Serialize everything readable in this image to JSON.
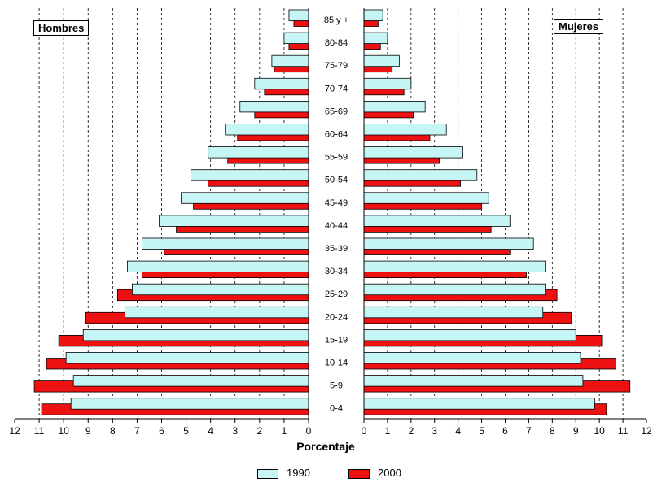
{
  "chart_data": {
    "type": "bar",
    "orientation": "population-pyramid",
    "left_panel_label": "Hombres",
    "right_panel_label": "Mujeres",
    "xlabel": "Porcentaje",
    "xlim": [
      0,
      12
    ],
    "x_ticks": [
      "0",
      "1",
      "2",
      "3",
      "4",
      "5",
      "6",
      "7",
      "8",
      "9",
      "10",
      "11",
      "12"
    ],
    "categories": [
      "85 y +",
      "80-84",
      "75-79",
      "70-74",
      "65-69",
      "60-64",
      "55-59",
      "50-54",
      "45-49",
      "40-44",
      "35-39",
      "30-34",
      "25-29",
      "20-24",
      "15-19",
      "10-14",
      "5-9",
      "0-4"
    ],
    "series": [
      {
        "name": "1990",
        "color": "#c6f5f5",
        "men": [
          0.8,
          1.0,
          1.5,
          2.2,
          2.8,
          3.4,
          4.1,
          4.8,
          5.2,
          6.1,
          6.8,
          7.4,
          7.2,
          7.5,
          9.2,
          9.9,
          9.6,
          9.7
        ],
        "women": [
          0.8,
          1.0,
          1.5,
          2.0,
          2.6,
          3.5,
          4.2,
          4.8,
          5.3,
          6.2,
          7.2,
          7.7,
          7.7,
          7.6,
          9.0,
          9.2,
          9.3,
          9.8
        ]
      },
      {
        "name": "2000",
        "color": "#ee1111",
        "men": [
          0.6,
          0.8,
          1.4,
          1.8,
          2.2,
          2.9,
          3.3,
          4.1,
          4.7,
          5.4,
          5.9,
          6.8,
          7.8,
          9.1,
          10.2,
          10.7,
          11.2,
          10.9
        ],
        "women": [
          0.6,
          0.7,
          1.2,
          1.7,
          2.1,
          2.8,
          3.2,
          4.1,
          5.0,
          5.4,
          6.2,
          6.9,
          8.2,
          8.8,
          10.1,
          10.7,
          11.3,
          10.3
        ]
      }
    ],
    "grid": "vertical dashed",
    "legend": "bottom-center"
  }
}
